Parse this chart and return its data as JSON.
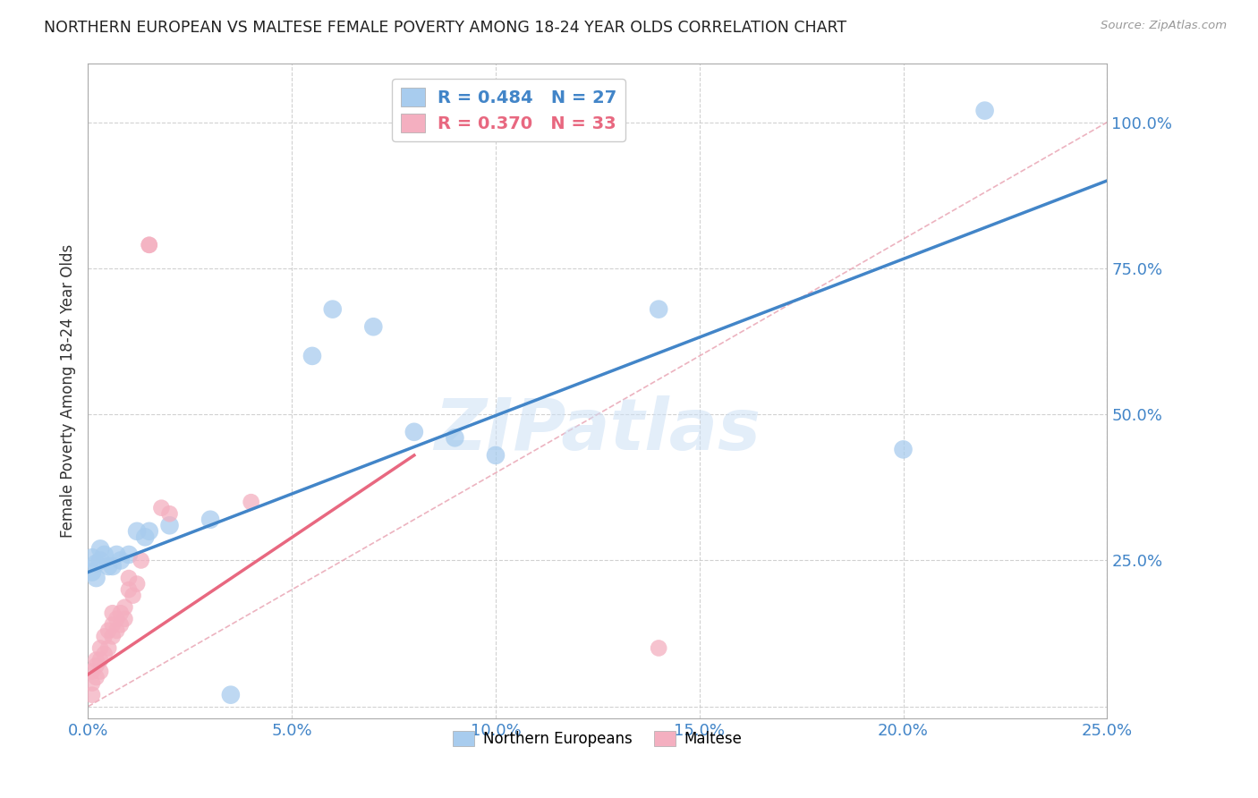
{
  "title": "NORTHERN EUROPEAN VS MALTESE FEMALE POVERTY AMONG 18-24 YEAR OLDS CORRELATION CHART",
  "source": "Source: ZipAtlas.com",
  "xlabel": "",
  "ylabel": "Female Poverty Among 18-24 Year Olds",
  "xlim": [
    0.0,
    0.25
  ],
  "ylim": [
    -0.02,
    1.1
  ],
  "xticks": [
    0.0,
    0.05,
    0.1,
    0.15,
    0.2,
    0.25
  ],
  "yticks": [
    0.0,
    0.25,
    0.5,
    0.75,
    1.0
  ],
  "xtick_labels": [
    "0.0%",
    "5.0%",
    "10.0%",
    "15.0%",
    "20.0%",
    "25.0%"
  ],
  "ytick_labels": [
    "",
    "25.0%",
    "50.0%",
    "75.0%",
    "100.0%"
  ],
  "blue_color": "#a8ccee",
  "pink_color": "#f4afc0",
  "blue_line_color": "#4285c8",
  "pink_line_color": "#e86880",
  "ref_line_color": "#e8a0b0",
  "legend_blue_label_r": "R = 0.484",
  "legend_blue_label_n": "N = 27",
  "legend_pink_label_r": "R = 0.370",
  "legend_pink_label_n": "N = 33",
  "watermark": "ZIPatlas",
  "background_color": "#ffffff",
  "grid_color": "#cccccc",
  "axis_color": "#aaaaaa",
  "title_color": "#222222",
  "ylabel_color": "#333333",
  "tick_color_y": "#4285c8",
  "tick_color_x": "#4285c8",
  "blue_scatter_size": 220,
  "pink_scatter_size": 180,
  "blue_x": [
    0.001,
    0.001,
    0.002,
    0.002,
    0.003,
    0.003,
    0.004,
    0.005,
    0.006,
    0.007,
    0.008,
    0.01,
    0.012,
    0.014,
    0.015,
    0.02,
    0.03,
    0.055,
    0.06,
    0.07,
    0.08,
    0.09,
    0.1,
    0.14,
    0.2,
    0.22,
    0.035
  ],
  "blue_y": [
    0.23,
    0.255,
    0.245,
    0.22,
    0.25,
    0.27,
    0.26,
    0.24,
    0.24,
    0.26,
    0.25,
    0.26,
    0.3,
    0.29,
    0.3,
    0.31,
    0.32,
    0.6,
    0.68,
    0.65,
    0.47,
    0.46,
    0.43,
    0.68,
    0.44,
    1.02,
    0.02
  ],
  "pink_x": [
    0.001,
    0.001,
    0.001,
    0.002,
    0.002,
    0.002,
    0.003,
    0.003,
    0.003,
    0.004,
    0.004,
    0.005,
    0.005,
    0.006,
    0.006,
    0.006,
    0.007,
    0.007,
    0.008,
    0.008,
    0.009,
    0.009,
    0.01,
    0.01,
    0.011,
    0.012,
    0.013,
    0.015,
    0.015,
    0.018,
    0.02,
    0.04,
    0.14
  ],
  "pink_y": [
    0.02,
    0.04,
    0.06,
    0.05,
    0.07,
    0.08,
    0.06,
    0.08,
    0.1,
    0.09,
    0.12,
    0.1,
    0.13,
    0.12,
    0.14,
    0.16,
    0.13,
    0.15,
    0.14,
    0.16,
    0.15,
    0.17,
    0.2,
    0.22,
    0.19,
    0.21,
    0.25,
    0.79,
    0.79,
    0.34,
    0.33,
    0.35,
    0.1
  ],
  "blue_line_x0": 0.0,
  "blue_line_y0": 0.23,
  "blue_line_x1": 0.25,
  "blue_line_y1": 0.9,
  "pink_line_x0": 0.0,
  "pink_line_y0": 0.055,
  "pink_line_x1": 0.08,
  "pink_line_y1": 0.43,
  "ref_line_x0": 0.0,
  "ref_line_y0": 0.0,
  "ref_line_x1": 0.25,
  "ref_line_y1": 1.0
}
